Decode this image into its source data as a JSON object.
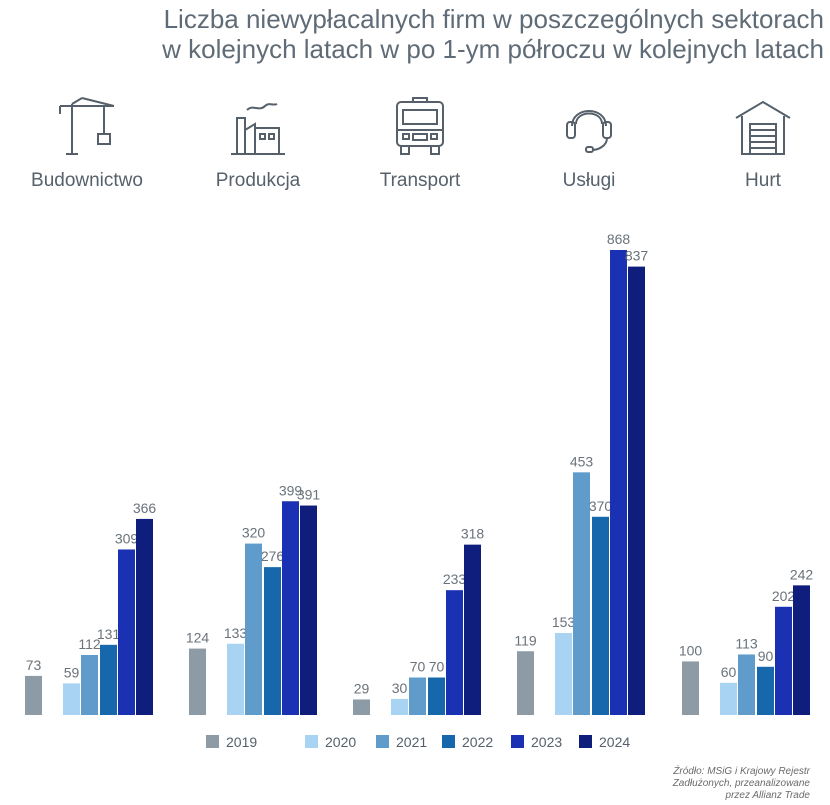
{
  "title": {
    "line1": "Liczba niewypłacalnych firm w poszczególnych sektorach",
    "line2": "w kolejnych latach w po 1-ym półroczu w kolejnych latach"
  },
  "sectors": [
    {
      "label": "Budownictwo",
      "icon": "crane-icon"
    },
    {
      "label": "Produkcja",
      "icon": "factory-icon"
    },
    {
      "label": "Transport",
      "icon": "truck-icon"
    },
    {
      "label": "Usługi",
      "icon": "headset-icon"
    },
    {
      "label": "Hurt",
      "icon": "warehouse-icon"
    }
  ],
  "chart_data": {
    "type": "bar",
    "categories": [
      "Budownictwo",
      "Produkcja",
      "Transport",
      "Usługi",
      "Hurt"
    ],
    "series": [
      {
        "name": "2019",
        "color": "#8c9ba6",
        "values": [
          73,
          124,
          29,
          119,
          100
        ]
      },
      {
        "name": "2020",
        "color": "#a9d3f2",
        "values": [
          59,
          133,
          30,
          153,
          60
        ]
      },
      {
        "name": "2021",
        "color": "#5f9ccc",
        "values": [
          112,
          320,
          70,
          453,
          113
        ]
      },
      {
        "name": "2022",
        "color": "#1667ac",
        "values": [
          131,
          276,
          70,
          370,
          90
        ]
      },
      {
        "name": "2023",
        "color": "#1a31b3",
        "values": [
          309,
          399,
          233,
          868,
          202
        ]
      },
      {
        "name": "2024",
        "color": "#0f1e7c",
        "values": [
          366,
          391,
          318,
          837,
          242
        ]
      }
    ],
    "ylim": [
      0,
      868
    ],
    "grid": false,
    "legend": "bottom",
    "xlabel": "",
    "ylabel": ""
  },
  "source": {
    "line1": "Źródło: MSiG i Krajowy Rejestr",
    "line2": "Zadłużonych, przeanalizowane",
    "line3": "przez Allianz Trade"
  }
}
